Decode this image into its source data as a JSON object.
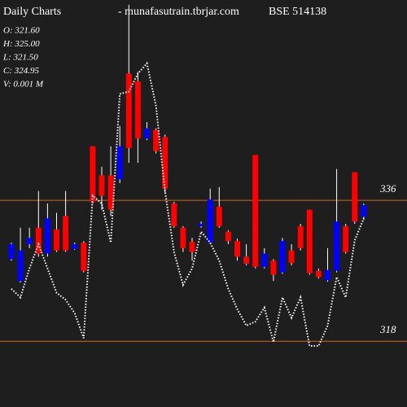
{
  "chart_data": {
    "type": "candlestick",
    "title": "Daily Charts",
    "source": "- munafasutrain.tbrjar.com",
    "symbol": "BSE 514138",
    "info": [
      "O: 321.60",
      "H: 325.00",
      "L: 321.50",
      "C: 324.95",
      "V: 0.001 M"
    ],
    "open": [
      328.5,
      325.7,
      330.4,
      332.5,
      329.2,
      332.3,
      334.0,
      329.8,
      330.6,
      342.9,
      339.2,
      339.2,
      338.7,
      352.2,
      351.2,
      343.9,
      345.0,
      344.1,
      335.6,
      332.5,
      330.7,
      332.7,
      330.6,
      335.2,
      332.0,
      330.8,
      328.8,
      341.8,
      327.5,
      328.3,
      326.8,
      329.6,
      332.7,
      334.8,
      327.0,
      325.8,
      327.0,
      332.7,
      339.6,
      333.9
    ],
    "high": [
      330.6,
      332.5,
      332.5,
      337.2,
      335.6,
      334.4,
      337.2,
      330.6,
      330.8,
      342.9,
      340.3,
      342.9,
      345.5,
      361.0,
      352.4,
      346.0,
      345.2,
      344.4,
      335.8,
      332.7,
      331.2,
      333.3,
      337.5,
      337.7,
      332.2,
      331.1,
      330.4,
      341.8,
      329.9,
      328.5,
      331.2,
      330.4,
      333.0,
      334.8,
      327.3,
      329.9,
      340.0,
      333.0,
      339.6,
      335.6
    ],
    "low": [
      328.3,
      325.5,
      329.9,
      328.8,
      328.8,
      329.4,
      329.4,
      329.7,
      326.8,
      335.6,
      334.8,
      334.0,
      338.2,
      340.8,
      340.8,
      343.7,
      342.0,
      337.0,
      332.5,
      329.4,
      328.3,
      332.5,
      330.4,
      332.5,
      330.4,
      328.3,
      327.7,
      327.3,
      327.3,
      325.7,
      326.6,
      327.7,
      329.6,
      326.5,
      326.0,
      325.6,
      326.8,
      329.2,
      333.0,
      333.5
    ],
    "close": [
      330.4,
      329.6,
      331.2,
      329.2,
      333.7,
      329.6,
      329.6,
      330.4,
      327.0,
      335.8,
      336.6,
      334.8,
      342.9,
      342.7,
      343.9,
      345.2,
      342.3,
      337.5,
      332.7,
      329.9,
      329.4,
      333.0,
      336.1,
      332.7,
      330.8,
      328.8,
      327.9,
      327.5,
      329.2,
      326.5,
      330.8,
      328.0,
      329.9,
      326.7,
      326.2,
      327.1,
      333.3,
      329.4,
      333.3,
      335.4
    ],
    "up_color": "#0000ff",
    "down_color": "#ff0000",
    "line": {
      "color": "#ffffff",
      "values": [
        324.7,
        323.6,
        327.3,
        330.4,
        327.3,
        324.2,
        323.3,
        321.6,
        318.4,
        336.6,
        335.6,
        330.6,
        349.6,
        349.9,
        352.2,
        353.5,
        348.1,
        337.2,
        329.4,
        325.2,
        327.3,
        332.0,
        330.6,
        328.3,
        324.7,
        322.1,
        320.0,
        320.5,
        322.3,
        317.9,
        323.6,
        321.0,
        323.6,
        317.4,
        317.4,
        320.0,
        326.2,
        323.6,
        330.9,
        333.7
      ]
    },
    "ylim": [
      309.6,
      361.6
    ],
    "yticks": [
      318,
      336
    ],
    "grid": true,
    "grid_color": "#d2691e"
  }
}
